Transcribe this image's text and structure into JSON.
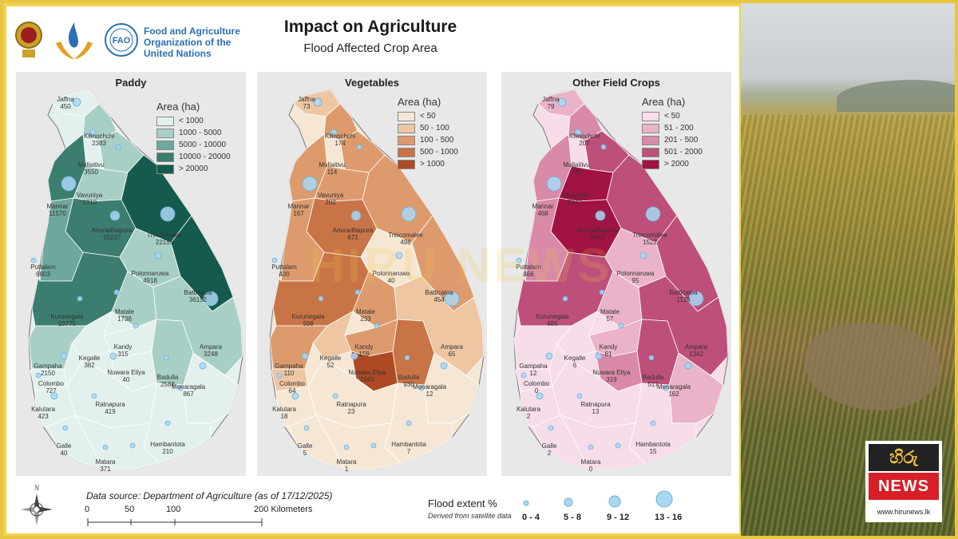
{
  "header": {
    "title": "Impact on Agriculture",
    "subtitle": "Flood Affected Crop Area",
    "org_name_lines": [
      "Food and Agriculture",
      "Organization of the",
      "United Nations"
    ],
    "fao_logo_text": "FAO"
  },
  "panels": [
    {
      "title": "Paddy",
      "legend_title": "Area (ha)",
      "legend": [
        {
          "label": "< 1000",
          "color": "#e3f1ee"
        },
        {
          "label": "1000 - 5000",
          "color": "#a8cfc6"
        },
        {
          "label": "5000 - 10000",
          "color": "#6ea89c"
        },
        {
          "label": "10000 - 20000",
          "color": "#3b7e70"
        },
        {
          "label": "> 20000",
          "color": "#145b4d"
        }
      ],
      "districts": [
        {
          "name": "Jaffna",
          "value": "450"
        },
        {
          "name": "Kilinochchi",
          "value": "2383"
        },
        {
          "name": "Mullaitivu",
          "value": "3550"
        },
        {
          "name": "Mannar",
          "value": "11570"
        },
        {
          "name": "Vavuniya",
          "value": "1310"
        },
        {
          "name": "Anuradhapura",
          "value": "15237"
        },
        {
          "name": "Trincomalee",
          "value": "22155"
        },
        {
          "name": "Puttalam",
          "value": "6803"
        },
        {
          "name": "Polonnaruwa",
          "value": "4918"
        },
        {
          "name": "Batticaloa",
          "value": "36152"
        },
        {
          "name": "Kurunegala",
          "value": "10775"
        },
        {
          "name": "Matale",
          "value": "1738"
        },
        {
          "name": "Kandy",
          "value": "315"
        },
        {
          "name": "Kegalle",
          "value": "382"
        },
        {
          "name": "Ampara",
          "value": "3248"
        },
        {
          "name": "Gampaha",
          "value": "2150"
        },
        {
          "name": "Colombo",
          "value": "727"
        },
        {
          "name": "Nuwara Eliya",
          "value": "40"
        },
        {
          "name": "Badulla",
          "value": "2588"
        },
        {
          "name": "Monaragala",
          "value": "867"
        },
        {
          "name": "Kalutara",
          "value": "423"
        },
        {
          "name": "Ratnapura",
          "value": "419"
        },
        {
          "name": "Hambantota",
          "value": "210"
        },
        {
          "name": "Galle",
          "value": "40"
        },
        {
          "name": "Matara",
          "value": "371"
        }
      ]
    },
    {
      "title": "Vegetables",
      "legend_title": "Area (ha)",
      "legend": [
        {
          "label": "< 50",
          "color": "#f6e7d5"
        },
        {
          "label": "50 - 100",
          "color": "#eec6a2"
        },
        {
          "label": "100 - 500",
          "color": "#dd9b6d"
        },
        {
          "label": "500 - 1000",
          "color": "#c97447"
        },
        {
          "label": "> 1000",
          "color": "#ad4a24"
        }
      ],
      "districts": [
        {
          "name": "Jaffna",
          "value": "73"
        },
        {
          "name": "Kilinochchi",
          "value": "174"
        },
        {
          "name": "Mullaitivu",
          "value": "114"
        },
        {
          "name": "Mannar",
          "value": "167"
        },
        {
          "name": "Vavuniya",
          "value": "202"
        },
        {
          "name": "Anuradhapura",
          "value": "671"
        },
        {
          "name": "Trincomalee",
          "value": "498"
        },
        {
          "name": "Puttalam",
          "value": "430"
        },
        {
          "name": "Polonnaruwa",
          "value": "40"
        },
        {
          "name": "Batticaloa",
          "value": "454"
        },
        {
          "name": "Kurunegala",
          "value": "508"
        },
        {
          "name": "Matale",
          "value": "233"
        },
        {
          "name": "Kandy",
          "value": "159"
        },
        {
          "name": "Kegalle",
          "value": "52"
        },
        {
          "name": "Ampara",
          "value": "65"
        },
        {
          "name": "Gampaha",
          "value": "110"
        },
        {
          "name": "Colombo",
          "value": "64"
        },
        {
          "name": "Nuwara Eliya",
          "value": "1043"
        },
        {
          "name": "Badulla",
          "value": "930"
        },
        {
          "name": "Monaragala",
          "value": "12"
        },
        {
          "name": "Kalutara",
          "value": "18"
        },
        {
          "name": "Ratnapura",
          "value": "23"
        },
        {
          "name": "Hambantota",
          "value": "7"
        },
        {
          "name": "Galle",
          "value": "5"
        },
        {
          "name": "Matara",
          "value": "1"
        }
      ]
    },
    {
      "title": "Other Field Crops",
      "legend_title": "Area (ha)",
      "legend": [
        {
          "label": "< 50",
          "color": "#f7dcea"
        },
        {
          "label": "51 - 200",
          "color": "#eab3c9"
        },
        {
          "label": "201 - 500",
          "color": "#d98aa8"
        },
        {
          "label": "501 - 2000",
          "color": "#bd4f7a"
        },
        {
          "label": "> 2000",
          "color": "#a11245"
        }
      ],
      "districts": [
        {
          "name": "Jaffna",
          "value": "79"
        },
        {
          "name": "Kilinochchi",
          "value": "207"
        },
        {
          "name": "Mullaitivu",
          "value": "740"
        },
        {
          "name": "Mannar",
          "value": "468"
        },
        {
          "name": "Vavuniya",
          "value": "2747"
        },
        {
          "name": "Anuradhapura",
          "value": "3470"
        },
        {
          "name": "Trincomalee",
          "value": "1522"
        },
        {
          "name": "Puttalam",
          "value": "466"
        },
        {
          "name": "Polonnaruwa",
          "value": "95"
        },
        {
          "name": "Batticaloa",
          "value": "1126"
        },
        {
          "name": "Kurunegala",
          "value": "685"
        },
        {
          "name": "Matale",
          "value": "57"
        },
        {
          "name": "Kandy",
          "value": "61"
        },
        {
          "name": "Kegalle",
          "value": "6"
        },
        {
          "name": "Ampara",
          "value": "1342"
        },
        {
          "name": "Gampaha",
          "value": "12"
        },
        {
          "name": "Colombo",
          "value": "0"
        },
        {
          "name": "Nuwara Eliya",
          "value": "319"
        },
        {
          "name": "Badulla",
          "value": "517"
        },
        {
          "name": "Monaragala",
          "value": "162"
        },
        {
          "name": "Kalutara",
          "value": "2"
        },
        {
          "name": "Ratnapura",
          "value": "13"
        },
        {
          "name": "Hambantota",
          "value": "15"
        },
        {
          "name": "Galle",
          "value": "2"
        },
        {
          "name": "Matara",
          "value": "0"
        }
      ]
    }
  ],
  "footer": {
    "data_source": "Data source: Department of Agriculture (as of 17/12/2025)",
    "scale_ticks": [
      "0",
      "50",
      "100",
      "200 Kilometers"
    ],
    "flood_title": "Flood extent %",
    "flood_sub": "Derived from satellite data",
    "flood_classes": [
      "0 - 4",
      "5 - 8",
      "9 - 12",
      "13 - 16"
    ],
    "compass_label": "N"
  },
  "branding": {
    "logo_top": "හිරු",
    "logo_main": "NEWS",
    "url": "www.hirunews.lk",
    "watermark": "HIRU NEWS"
  },
  "colors": {
    "frame": "#f3d24f",
    "fao_blue": "#2b6fb5",
    "bubble": "#a9d8f5"
  }
}
